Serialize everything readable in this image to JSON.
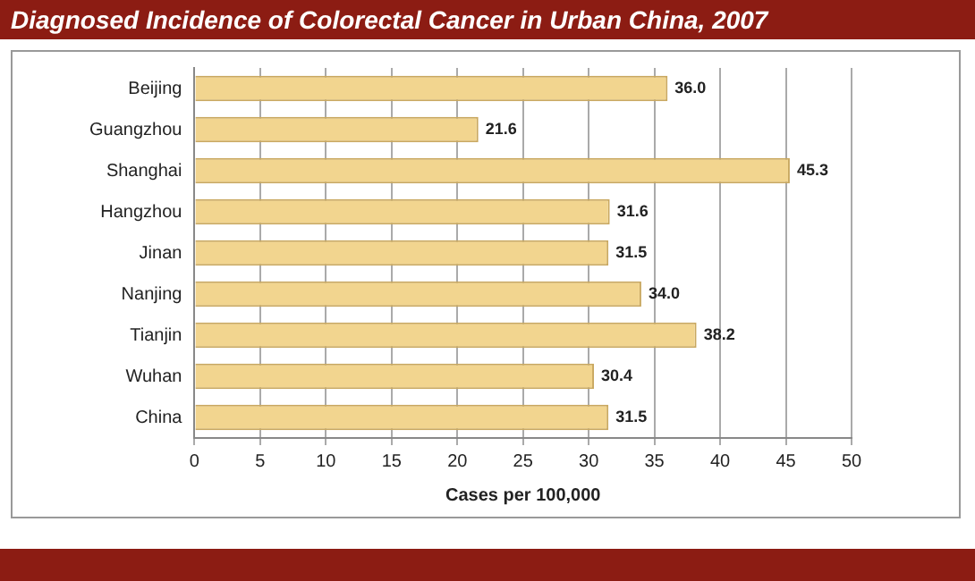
{
  "chart_data": {
    "type": "bar",
    "orientation": "horizontal",
    "title": "Diagnosed Incidence of Colorectal Cancer in Urban China, 2007",
    "xlabel": "Cases per 100,000",
    "categories": [
      "Beijing",
      "Guangzhou",
      "Shanghai",
      "Hangzhou",
      "Jinan",
      "Nanjing",
      "Tianjin",
      "Wuhan",
      "China"
    ],
    "values": [
      36.0,
      21.6,
      45.3,
      31.6,
      31.5,
      34.0,
      38.2,
      30.4,
      31.5
    ],
    "value_labels": [
      "36.0",
      "21.6",
      "45.3",
      "31.6",
      "31.5",
      "34.0",
      "38.2",
      "30.4",
      "31.5"
    ],
    "color": "#f2d58f",
    "xlim": [
      0,
      50
    ],
    "xticks": [
      0,
      5,
      10,
      15,
      20,
      25,
      30,
      35,
      40,
      45,
      50
    ],
    "grid": "x",
    "legend": false
  }
}
